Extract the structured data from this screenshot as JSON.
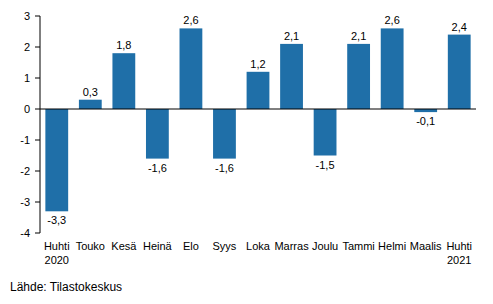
{
  "chart_data": {
    "type": "bar",
    "categories": [
      "Huhti 2020",
      "Touko",
      "Kesä",
      "Heinä",
      "Elo",
      "Syys",
      "Loka",
      "Marras",
      "Joulu",
      "Tammi",
      "Helmi",
      "Maalis",
      "Huhti 2021"
    ],
    "values": [
      -3.3,
      0.3,
      1.8,
      -1.6,
      2.6,
      -1.6,
      1.2,
      2.1,
      -1.5,
      2.1,
      2.6,
      -0.1,
      2.4
    ],
    "value_labels": [
      "-3,3",
      "0,3",
      "1,8",
      "-1,6",
      "2,6",
      "-1,6",
      "1,2",
      "2,1",
      "-1,5",
      "2,1",
      "2,6",
      "-0,1",
      "2,4"
    ],
    "color": "#1f6fa8",
    "ylim": [
      -4,
      3
    ],
    "yticks": [
      -4,
      -3,
      -2,
      -1,
      0,
      1,
      2,
      3
    ],
    "grid": false,
    "data_labels": true,
    "source": "Lähde: Tilastokeskus"
  }
}
